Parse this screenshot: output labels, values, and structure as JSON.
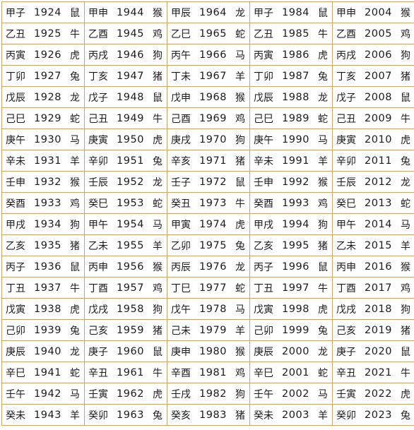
{
  "table": {
    "columns": [
      [
        {
          "ganzhi": "甲子",
          "year": "1924",
          "animal": "鼠"
        },
        {
          "ganzhi": "乙丑",
          "year": "1925",
          "animal": "牛"
        },
        {
          "ganzhi": "丙寅",
          "year": "1926",
          "animal": "虎"
        },
        {
          "ganzhi": "丁卯",
          "year": "1927",
          "animal": "兔"
        },
        {
          "ganzhi": "戊辰",
          "year": "1928",
          "animal": "龙"
        },
        {
          "ganzhi": "己巳",
          "year": "1929",
          "animal": "蛇"
        },
        {
          "ganzhi": "庚午",
          "year": "1930",
          "animal": "马"
        },
        {
          "ganzhi": "辛未",
          "year": "1931",
          "animal": "羊"
        },
        {
          "ganzhi": "壬申",
          "year": "1932",
          "animal": "猴"
        },
        {
          "ganzhi": "癸酉",
          "year": "1933",
          "animal": "鸡"
        },
        {
          "ganzhi": "甲戌",
          "year": "1934",
          "animal": "狗"
        },
        {
          "ganzhi": "乙亥",
          "year": "1935",
          "animal": "猪"
        },
        {
          "ganzhi": "丙子",
          "year": "1936",
          "animal": "鼠"
        },
        {
          "ganzhi": "丁丑",
          "year": "1937",
          "animal": "牛"
        },
        {
          "ganzhi": "戊寅",
          "year": "1938",
          "animal": "虎"
        },
        {
          "ganzhi": "己卯",
          "year": "1939",
          "animal": "兔"
        },
        {
          "ganzhi": "庚辰",
          "year": "1940",
          "animal": "龙"
        },
        {
          "ganzhi": "辛巳",
          "year": "1941",
          "animal": "蛇"
        },
        {
          "ganzhi": "壬午",
          "year": "1942",
          "animal": "马"
        },
        {
          "ganzhi": "癸未",
          "year": "1943",
          "animal": "羊"
        }
      ],
      [
        {
          "ganzhi": "甲申",
          "year": "1944",
          "animal": "猴"
        },
        {
          "ganzhi": "乙酉",
          "year": "1945",
          "animal": "鸡"
        },
        {
          "ganzhi": "丙戌",
          "year": "1946",
          "animal": "狗"
        },
        {
          "ganzhi": "丁亥",
          "year": "1947",
          "animal": "猪"
        },
        {
          "ganzhi": "戊子",
          "year": "1948",
          "animal": "鼠"
        },
        {
          "ganzhi": "己丑",
          "year": "1949",
          "animal": "牛"
        },
        {
          "ganzhi": "庚寅",
          "year": "1950",
          "animal": "虎"
        },
        {
          "ganzhi": "辛卯",
          "year": "1951",
          "animal": "兔"
        },
        {
          "ganzhi": "壬辰",
          "year": "1952",
          "animal": "龙"
        },
        {
          "ganzhi": "癸巳",
          "year": "1953",
          "animal": "蛇"
        },
        {
          "ganzhi": "甲午",
          "year": "1954",
          "animal": "马"
        },
        {
          "ganzhi": "乙未",
          "year": "1955",
          "animal": "羊"
        },
        {
          "ganzhi": "丙申",
          "year": "1956",
          "animal": "猴"
        },
        {
          "ganzhi": "丁酉",
          "year": "1957",
          "animal": "鸡"
        },
        {
          "ganzhi": "戊戌",
          "year": "1958",
          "animal": "狗"
        },
        {
          "ganzhi": "己亥",
          "year": "1959",
          "animal": "猪"
        },
        {
          "ganzhi": "庚子",
          "year": "1960",
          "animal": "鼠"
        },
        {
          "ganzhi": "辛丑",
          "year": "1961",
          "animal": "牛"
        },
        {
          "ganzhi": "壬寅",
          "year": "1962",
          "animal": "虎"
        },
        {
          "ganzhi": "癸卯",
          "year": "1963",
          "animal": "兔"
        }
      ],
      [
        {
          "ganzhi": "甲辰",
          "year": "1964",
          "animal": "龙"
        },
        {
          "ganzhi": "乙巳",
          "year": "1965",
          "animal": "蛇"
        },
        {
          "ganzhi": "丙午",
          "year": "1966",
          "animal": "马"
        },
        {
          "ganzhi": "丁未",
          "year": "1967",
          "animal": "羊"
        },
        {
          "ganzhi": "戊申",
          "year": "1968",
          "animal": "猴"
        },
        {
          "ganzhi": "己酉",
          "year": "1969",
          "animal": "鸡"
        },
        {
          "ganzhi": "庚戌",
          "year": "1970",
          "animal": "狗"
        },
        {
          "ganzhi": "辛亥",
          "year": "1971",
          "animal": "猪"
        },
        {
          "ganzhi": "壬子",
          "year": "1972",
          "animal": "鼠"
        },
        {
          "ganzhi": "癸丑",
          "year": "1973",
          "animal": "牛"
        },
        {
          "ganzhi": "甲寅",
          "year": "1974",
          "animal": "虎"
        },
        {
          "ganzhi": "乙卯",
          "year": "1975",
          "animal": "兔"
        },
        {
          "ganzhi": "丙辰",
          "year": "1976",
          "animal": "龙"
        },
        {
          "ganzhi": "丁巳",
          "year": "1977",
          "animal": "蛇"
        },
        {
          "ganzhi": "戊午",
          "year": "1978",
          "animal": "马"
        },
        {
          "ganzhi": "己未",
          "year": "1979",
          "animal": "羊"
        },
        {
          "ganzhi": "庚申",
          "year": "1980",
          "animal": "猴"
        },
        {
          "ganzhi": "辛酉",
          "year": "1981",
          "animal": "鸡"
        },
        {
          "ganzhi": "壬戌",
          "year": "1982",
          "animal": "狗"
        },
        {
          "ganzhi": "癸亥",
          "year": "1983",
          "animal": "猪"
        }
      ],
      [
        {
          "ganzhi": "甲子",
          "year": "1984",
          "animal": "鼠"
        },
        {
          "ganzhi": "乙丑",
          "year": "1985",
          "animal": "牛"
        },
        {
          "ganzhi": "丙寅",
          "year": "1986",
          "animal": "虎"
        },
        {
          "ganzhi": "丁卯",
          "year": "1987",
          "animal": "兔"
        },
        {
          "ganzhi": "戊辰",
          "year": "1988",
          "animal": "龙"
        },
        {
          "ganzhi": "己巳",
          "year": "1989",
          "animal": "蛇"
        },
        {
          "ganzhi": "庚午",
          "year": "1990",
          "animal": "马"
        },
        {
          "ganzhi": "辛未",
          "year": "1991",
          "animal": "羊"
        },
        {
          "ganzhi": "壬申",
          "year": "1992",
          "animal": "猴"
        },
        {
          "ganzhi": "癸酉",
          "year": "1993",
          "animal": "鸡"
        },
        {
          "ganzhi": "甲戌",
          "year": "1994",
          "animal": "狗"
        },
        {
          "ganzhi": "乙亥",
          "year": "1995",
          "animal": "猪"
        },
        {
          "ganzhi": "丙子",
          "year": "1996",
          "animal": "鼠"
        },
        {
          "ganzhi": "丁丑",
          "year": "1997",
          "animal": "牛"
        },
        {
          "ganzhi": "戊寅",
          "year": "1998",
          "animal": "虎"
        },
        {
          "ganzhi": "己卯",
          "year": "1999",
          "animal": "兔"
        },
        {
          "ganzhi": "庚辰",
          "year": "2000",
          "animal": "龙"
        },
        {
          "ganzhi": "辛巳",
          "year": "2001",
          "animal": "蛇"
        },
        {
          "ganzhi": "壬午",
          "year": "2002",
          "animal": "马"
        },
        {
          "ganzhi": "癸未",
          "year": "2003",
          "animal": "羊"
        }
      ],
      [
        {
          "ganzhi": "甲申",
          "year": "2004",
          "animal": "猴"
        },
        {
          "ganzhi": "乙酉",
          "year": "2005",
          "animal": "鸡"
        },
        {
          "ganzhi": "丙戌",
          "year": "2006",
          "animal": "狗"
        },
        {
          "ganzhi": "丁亥",
          "year": "2007",
          "animal": "猪"
        },
        {
          "ganzhi": "戊子",
          "year": "2008",
          "animal": "鼠"
        },
        {
          "ganzhi": "己丑",
          "year": "2009",
          "animal": "牛"
        },
        {
          "ganzhi": "庚寅",
          "year": "2010",
          "animal": "虎"
        },
        {
          "ganzhi": "辛卯",
          "year": "2011",
          "animal": "兔"
        },
        {
          "ganzhi": "壬辰",
          "year": "2012",
          "animal": "龙"
        },
        {
          "ganzhi": "癸巳",
          "year": "2013",
          "animal": "蛇"
        },
        {
          "ganzhi": "甲午",
          "year": "2014",
          "animal": "马"
        },
        {
          "ganzhi": "乙未",
          "year": "2015",
          "animal": "羊"
        },
        {
          "ganzhi": "丙申",
          "year": "2016",
          "animal": "猴"
        },
        {
          "ganzhi": "丁酉",
          "year": "2017",
          "animal": "鸡"
        },
        {
          "ganzhi": "戊戌",
          "year": "2018",
          "animal": "狗"
        },
        {
          "ganzhi": "己亥",
          "year": "2019",
          "animal": "猪"
        },
        {
          "ganzhi": "庚子",
          "year": "2020",
          "animal": "鼠"
        },
        {
          "ganzhi": "辛丑",
          "year": "2021",
          "animal": "牛"
        },
        {
          "ganzhi": "壬寅",
          "year": "2022",
          "animal": "虎"
        },
        {
          "ganzhi": "癸卯",
          "year": "2023",
          "animal": "兔"
        }
      ]
    ]
  },
  "colors": {
    "border": "#c8a56a",
    "text": "#1a1a1a",
    "background": "#ffffff"
  }
}
